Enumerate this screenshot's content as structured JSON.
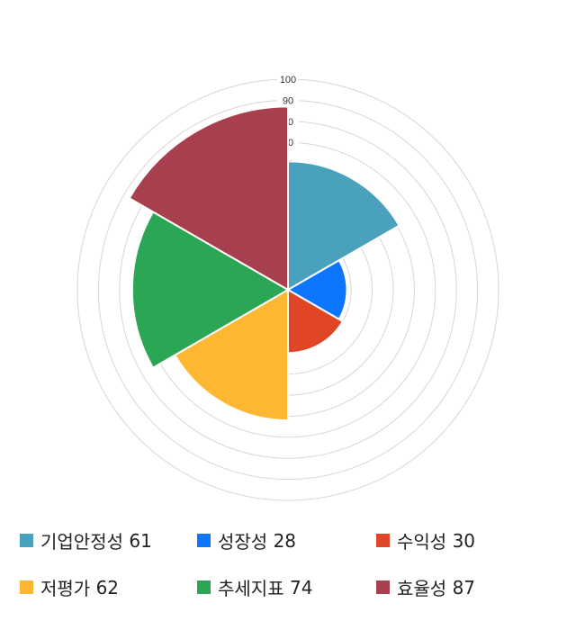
{
  "chart_data": {
    "type": "polarArea",
    "categories": [
      "기업안정성",
      "성장성",
      "수익성",
      "저평가",
      "추세지표",
      "효율성"
    ],
    "values": [
      61,
      28,
      30,
      62,
      74,
      87
    ],
    "colors": [
      "#4aa1bb",
      "#0d75fe",
      "#e04526",
      "#fdb733",
      "#2aa655",
      "#a73f4e"
    ],
    "rlim": [
      0,
      100
    ],
    "r_ticks": [
      10,
      20,
      30,
      40,
      50,
      60,
      70,
      80,
      90,
      100
    ],
    "grid": true,
    "legend_position": "bottom"
  },
  "legend": [
    {
      "label": "기업안정성",
      "value": "61"
    },
    {
      "label": "성장성",
      "value": "28"
    },
    {
      "label": "수익성",
      "value": "30"
    },
    {
      "label": "저평가",
      "value": "62"
    },
    {
      "label": "추세지표",
      "value": "74"
    },
    {
      "label": "효율성",
      "value": "87"
    }
  ]
}
